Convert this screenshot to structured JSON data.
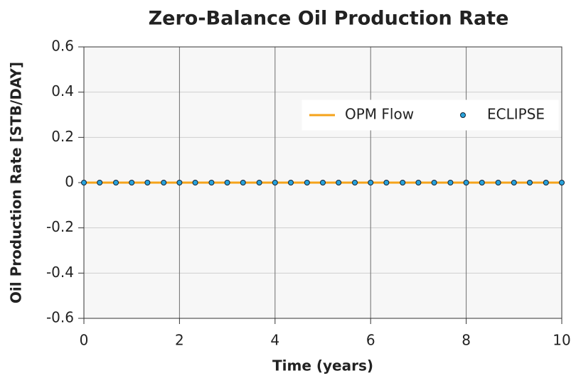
{
  "chart_data": {
    "type": "line",
    "title": "Zero-Balance Oil Production Rate",
    "x_label": "Time (years)",
    "y_label": "Oil Production Rate [STB/DAY]",
    "x": [
      0,
      0.33,
      0.67,
      1,
      1.33,
      1.67,
      2,
      2.33,
      2.67,
      3,
      3.33,
      3.67,
      4,
      4.33,
      4.67,
      5,
      5.33,
      5.67,
      6,
      6.33,
      6.67,
      7,
      7.33,
      7.67,
      8,
      8.33,
      8.67,
      9,
      9.33,
      9.67,
      10
    ],
    "series": [
      {
        "name": "OPM Flow",
        "color": "#f5a31a",
        "mode": "line",
        "values": [
          0,
          0,
          0,
          0,
          0,
          0,
          0,
          0,
          0,
          0,
          0,
          0,
          0,
          0,
          0,
          0,
          0,
          0,
          0,
          0,
          0,
          0,
          0,
          0,
          0,
          0,
          0,
          0,
          0,
          0,
          0
        ]
      },
      {
        "name": "ECLIPSE",
        "color": "#29a3dc",
        "mode": "markers",
        "values": [
          0,
          0,
          0,
          0,
          0,
          0,
          0,
          0,
          0,
          0,
          0,
          0,
          0,
          0,
          0,
          0,
          0,
          0,
          0,
          0,
          0,
          0,
          0,
          0,
          0,
          0,
          0,
          0,
          0,
          0,
          0
        ]
      }
    ],
    "xlim": [
      0,
      10
    ],
    "xticks": [
      0,
      2,
      4,
      6,
      8,
      10
    ],
    "ylim": [
      -0.6,
      0.6
    ],
    "yticks": [
      -0.6,
      -0.4,
      -0.2,
      0,
      0.2,
      0.4,
      0.6
    ],
    "grid": true,
    "legend": "upper-right"
  }
}
